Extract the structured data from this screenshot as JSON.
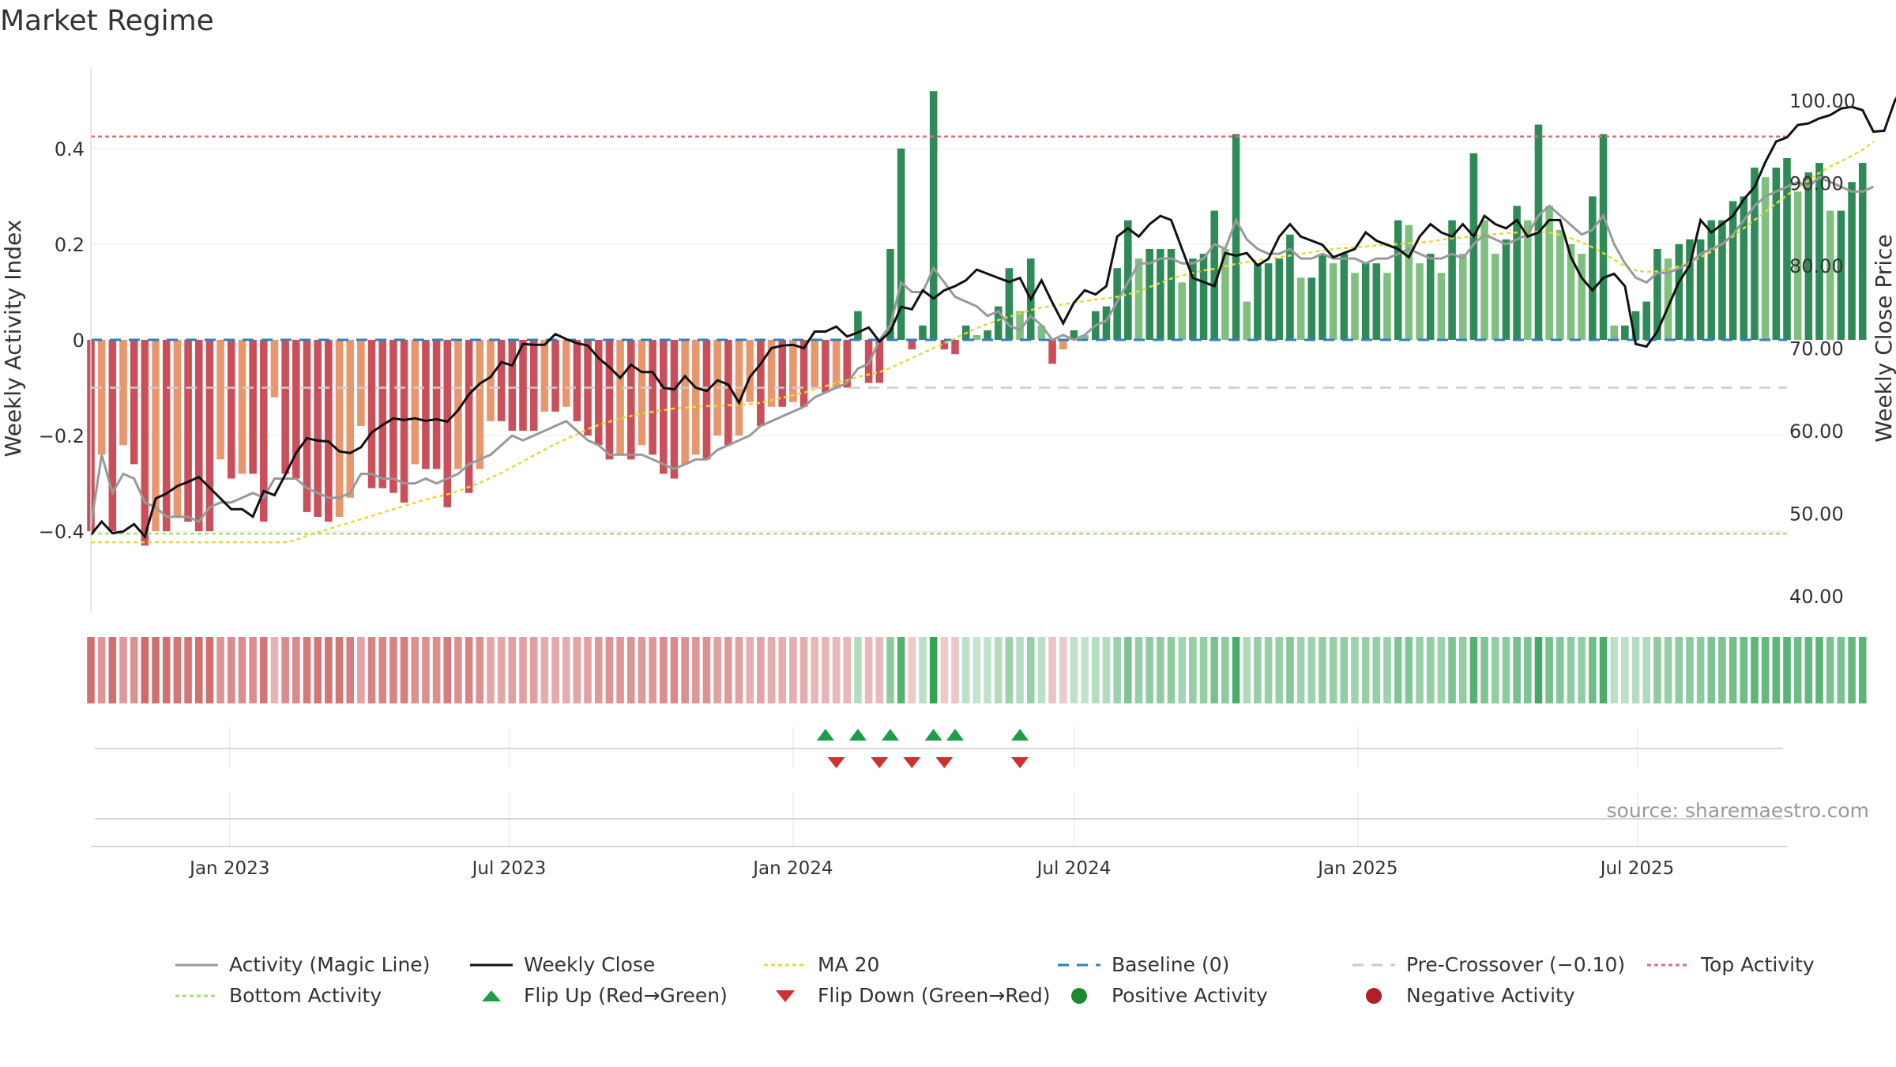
{
  "chart_data": {
    "title": "Market Regime",
    "type": "bar",
    "x_axis": {
      "type": "date",
      "range": [
        "2022-10-03",
        "2025-10-06"
      ],
      "tick_labels": [
        "Jan 2023",
        "Jul 2023",
        "Jan 2024",
        "Jul 2024",
        "Jan 2025",
        "Jul 2025"
      ]
    },
    "y_left": {
      "label": "Weekly Activity Index",
      "range": [
        -0.57,
        0.57
      ],
      "tick_labels": [
        "0.4",
        "0.2",
        "0",
        "−0.2",
        "−0.4"
      ]
    },
    "y_right": {
      "label": "Weekly Close Price",
      "range": [
        38,
        104
      ],
      "tick_labels": [
        "100.00",
        "90.00",
        "80.00",
        "70.00",
        "60.00",
        "50.00",
        "40.00"
      ]
    },
    "grid": true,
    "start_date": "2022-10-03",
    "bar_values": [
      -0.4,
      -0.24,
      -0.4,
      -0.22,
      -0.26,
      -0.43,
      -0.4,
      -0.4,
      -0.37,
      -0.38,
      -0.4,
      -0.4,
      -0.25,
      -0.29,
      -0.28,
      -0.28,
      -0.38,
      -0.12,
      -0.28,
      -0.29,
      -0.36,
      -0.37,
      -0.38,
      -0.37,
      -0.33,
      -0.18,
      -0.31,
      -0.31,
      -0.32,
      -0.34,
      -0.26,
      -0.27,
      -0.27,
      -0.35,
      -0.27,
      -0.32,
      -0.27,
      -0.17,
      -0.17,
      -0.19,
      -0.19,
      -0.19,
      -0.15,
      -0.15,
      -0.14,
      -0.17,
      -0.2,
      -0.22,
      -0.25,
      -0.24,
      -0.25,
      -0.22,
      -0.24,
      -0.28,
      -0.29,
      -0.26,
      -0.24,
      -0.25,
      -0.2,
      -0.22,
      -0.2,
      -0.13,
      -0.18,
      -0.14,
      -0.14,
      -0.13,
      -0.14,
      -0.1,
      -0.11,
      -0.1,
      -0.1,
      0.06,
      -0.09,
      -0.09,
      0.19,
      0.4,
      -0.02,
      0.03,
      0.52,
      -0.02,
      -0.03,
      0.03,
      0.01,
      0.02,
      0.07,
      0.15,
      0.06,
      0.17,
      0.03,
      -0.05,
      -0.02,
      0.02,
      0.01,
      0.06,
      0.07,
      0.15,
      0.25,
      0.17,
      0.19,
      0.19,
      0.19,
      0.12,
      0.17,
      0.18,
      0.27,
      0.19,
      0.43,
      0.08,
      0.16,
      0.16,
      0.17,
      0.22,
      0.13,
      0.13,
      0.18,
      0.16,
      0.18,
      0.14,
      0.16,
      0.16,
      0.14,
      0.25,
      0.24,
      0.16,
      0.18,
      0.14,
      0.25,
      0.18,
      0.39,
      0.25,
      0.18,
      0.21,
      0.28,
      0.25,
      0.45,
      0.28,
      0.23,
      0.2,
      0.18,
      0.3,
      0.43,
      0.03,
      0.03,
      0.06,
      0.08,
      0.19,
      0.17,
      0.2,
      0.21,
      0.21,
      0.25,
      0.25,
      0.29,
      0.3,
      0.36,
      0.34,
      0.36,
      0.38,
      0.31,
      0.35,
      0.37,
      0.27,
      0.27,
      0.33,
      0.37
    ],
    "close": [
      47.4,
      49.0,
      47.6,
      47.8,
      48.7,
      47.2,
      51.8,
      52.4,
      53.3,
      53.8,
      54.4,
      53.1,
      51.8,
      50.5,
      50.5,
      49.6,
      52.7,
      52.2,
      54.7,
      57.3,
      59.1,
      58.8,
      58.7,
      57.5,
      57.3,
      58.0,
      59.8,
      60.7,
      61.5,
      61.3,
      61.5,
      61.2,
      61.4,
      61.1,
      62.5,
      64.4,
      65.7,
      66.5,
      68.3,
      67.9,
      70.5,
      70.4,
      70.4,
      71.7,
      71.1,
      70.6,
      70.3,
      68.8,
      67.7,
      66.4,
      68.0,
      67.1,
      67.1,
      65.2,
      65.0,
      66.6,
      65.2,
      64.8,
      66.1,
      65.6,
      63.4,
      66.5,
      68.1,
      70.0,
      70.3,
      70.4,
      70.0,
      72.0,
      72.0,
      72.6,
      71.4,
      71.9,
      72.5,
      70.8,
      72.0,
      75.0,
      74.7,
      77.0,
      76.0,
      77.0,
      77.5,
      78.2,
      79.5,
      79.0,
      78.5,
      78.0,
      78.5,
      75.9,
      78.2,
      75.5,
      73.0,
      75.5,
      77.0,
      76.5,
      77.5,
      83.5,
      84.5,
      83.5,
      85.0,
      86.0,
      85.5,
      82.0,
      78.5,
      78.0,
      77.5,
      81.5,
      81.2,
      81.5,
      80.0,
      80.8,
      83.5,
      85.0,
      83.5,
      83.0,
      82.5,
      81.0,
      81.5,
      82.0,
      84.0,
      83.0,
      82.5,
      82.0,
      81.0,
      83.5,
      85.0,
      84.0,
      83.5,
      85.0,
      83.5,
      86.0,
      85.0,
      84.5,
      85.5,
      83.5,
      84.0,
      85.5,
      85.5,
      81.0,
      78.5,
      77.0,
      78.5,
      79.0,
      77.5,
      70.5,
      70.2,
      72.0,
      75.0,
      78.0,
      80.0,
      85.5,
      84.0,
      85.0,
      86.0,
      88.0,
      89.5,
      92.5,
      95.0,
      95.5,
      97.0,
      97.2,
      97.8,
      98.2,
      99.0,
      99.2,
      98.8,
      96.2,
      96.3,
      100.0,
      102.0
    ],
    "activity_line": [
      -0.39,
      -0.24,
      -0.32,
      -0.28,
      -0.29,
      -0.34,
      -0.35,
      -0.37,
      -0.37,
      -0.37,
      -0.38,
      -0.35,
      -0.34,
      -0.34,
      -0.33,
      -0.32,
      -0.33,
      -0.29,
      -0.29,
      -0.29,
      -0.31,
      -0.32,
      -0.33,
      -0.33,
      -0.32,
      -0.28,
      -0.28,
      -0.29,
      -0.29,
      -0.3,
      -0.3,
      -0.29,
      -0.3,
      -0.29,
      -0.28,
      -0.26,
      -0.25,
      -0.24,
      -0.22,
      -0.2,
      -0.21,
      -0.2,
      -0.19,
      -0.18,
      -0.17,
      -0.19,
      -0.21,
      -0.22,
      -0.24,
      -0.24,
      -0.24,
      -0.24,
      -0.25,
      -0.26,
      -0.27,
      -0.26,
      -0.25,
      -0.25,
      -0.23,
      -0.22,
      -0.21,
      -0.2,
      -0.18,
      -0.17,
      -0.16,
      -0.15,
      -0.14,
      -0.12,
      -0.11,
      -0.1,
      -0.09,
      -0.06,
      -0.05,
      0.0,
      0.03,
      0.12,
      0.1,
      0.1,
      0.15,
      0.12,
      0.09,
      0.08,
      0.07,
      0.05,
      0.06,
      0.03,
      0.02,
      0.05,
      0.03,
      0.0,
      0.01,
      0.0,
      0.01,
      0.03,
      0.04,
      0.08,
      0.12,
      0.16,
      0.16,
      0.17,
      0.17,
      0.16,
      0.16,
      0.17,
      0.2,
      0.19,
      0.25,
      0.21,
      0.19,
      0.18,
      0.18,
      0.19,
      0.17,
      0.17,
      0.18,
      0.17,
      0.17,
      0.17,
      0.16,
      0.17,
      0.17,
      0.18,
      0.19,
      0.18,
      0.17,
      0.17,
      0.18,
      0.17,
      0.2,
      0.22,
      0.21,
      0.2,
      0.21,
      0.22,
      0.26,
      0.28,
      0.26,
      0.24,
      0.22,
      0.23,
      0.26,
      0.2,
      0.16,
      0.13,
      0.12,
      0.14,
      0.14,
      0.15,
      0.16,
      0.18,
      0.19,
      0.2,
      0.22,
      0.25,
      0.28,
      0.3,
      0.31,
      0.32,
      0.33,
      0.32,
      0.34,
      0.33,
      0.32,
      0.31,
      0.31,
      0.32
    ],
    "ma20": [
      46.5,
      46.5,
      46.5,
      46.5,
      46.5,
      46.5,
      46.5,
      46.5,
      46.5,
      46.5,
      46.5,
      46.5,
      46.5,
      46.5,
      46.5,
      46.5,
      46.5,
      46.5,
      46.5,
      46.8,
      47.3,
      47.7,
      48.1,
      48.5,
      48.9,
      49.3,
      49.7,
      50.1,
      50.5,
      50.9,
      51.3,
      51.7,
      52.0,
      52.3,
      52.7,
      53.2,
      53.7,
      54.3,
      54.9,
      55.6,
      56.3,
      57.0,
      57.7,
      58.4,
      59.0,
      59.6,
      60.2,
      60.7,
      61.1,
      61.5,
      61.8,
      62.1,
      62.3,
      62.5,
      62.7,
      62.8,
      62.9,
      63.0,
      63.0,
      63.1,
      63.1,
      63.2,
      63.4,
      63.7,
      64.0,
      64.3,
      64.6,
      65.0,
      65.4,
      65.8,
      66.1,
      66.5,
      66.8,
      67.1,
      67.6,
      68.2,
      68.8,
      69.4,
      70.0,
      70.6,
      71.2,
      71.8,
      72.4,
      72.9,
      73.4,
      73.8,
      74.2,
      74.6,
      74.9,
      75.1,
      75.3,
      75.5,
      75.7,
      75.9,
      76.0,
      76.2,
      76.5,
      76.9,
      77.4,
      77.9,
      78.4,
      78.8,
      79.1,
      79.4,
      79.6,
      79.9,
      80.2,
      80.4,
      80.6,
      80.8,
      81.0,
      81.2,
      81.4,
      81.6,
      81.8,
      82.0,
      82.1,
      82.2,
      82.3,
      82.4,
      82.5,
      82.6,
      82.7,
      82.8,
      82.9,
      83.1,
      83.3,
      83.4,
      83.5,
      83.7,
      83.8,
      83.9,
      84.0,
      84.0,
      84.1,
      84.0,
      83.7,
      83.3,
      82.8,
      82.2,
      81.5,
      80.7,
      79.9,
      79.4,
      79.2,
      79.3,
      79.5,
      79.9,
      80.4,
      81.0,
      81.7,
      82.6,
      83.5,
      84.5,
      85.5,
      86.5,
      87.5,
      88.5,
      89.4,
      90.3,
      91.2,
      92.0,
      92.6,
      93.3,
      94.0,
      95.0
    ],
    "top_activity": 0.425,
    "bottom_activity": -0.405,
    "baseline": 0,
    "pre_crossover": -0.1,
    "flip_up_weeks": [
      68,
      71,
      74,
      78,
      80,
      86
    ],
    "flip_down_weeks": [
      69,
      73,
      76,
      79,
      86
    ],
    "source_note": "source: sharemaestro.com",
    "colors": {
      "green_strong": "#2e8b57",
      "green_light": "#7fbf7f",
      "red_strong": "#c9505a",
      "red_light": "#e8966e",
      "activity_line": "#999999",
      "close_line": "#111111",
      "ma_line": "#e8d83a",
      "baseline": "#2f7fc1",
      "pre_crossover": "#cccccc",
      "top_activity": "#d9707a",
      "bottom_activity": "#a8dc7a",
      "flip_up": "#1e9e4a",
      "flip_down": "#d03030"
    },
    "legend": [
      {
        "label": "Activity (Magic Line)",
        "kind": "line",
        "color": "#999999",
        "dash": ""
      },
      {
        "label": "Weekly Close",
        "kind": "line",
        "color": "#111111",
        "dash": ""
      },
      {
        "label": "MA 20",
        "kind": "line",
        "color": "#e8d83a",
        "dash": "5,4"
      },
      {
        "label": "Baseline (0)",
        "kind": "line",
        "color": "#2f7fc1",
        "dash": "14,10"
      },
      {
        "label": "Pre-Crossover (−0.10)",
        "kind": "line",
        "color": "#cccccc",
        "dash": "14,10"
      },
      {
        "label": "Top Activity",
        "kind": "line",
        "color": "#d9707a",
        "dash": "5,4"
      },
      {
        "label": "Bottom Activity",
        "kind": "line",
        "color": "#a8dc7a",
        "dash": "5,4"
      },
      {
        "label": "Flip Up (Red→Green)",
        "kind": "tri-up",
        "color": "#1e9e4a",
        "dash": ""
      },
      {
        "label": "Flip Down (Green→Red)",
        "kind": "tri-down",
        "color": "#d03030",
        "dash": ""
      },
      {
        "label": "Positive Activity",
        "kind": "dot",
        "color": "#1e8a2e",
        "dash": ""
      },
      {
        "label": "Negative Activity",
        "kind": "dot",
        "color": "#b02028",
        "dash": ""
      }
    ]
  }
}
